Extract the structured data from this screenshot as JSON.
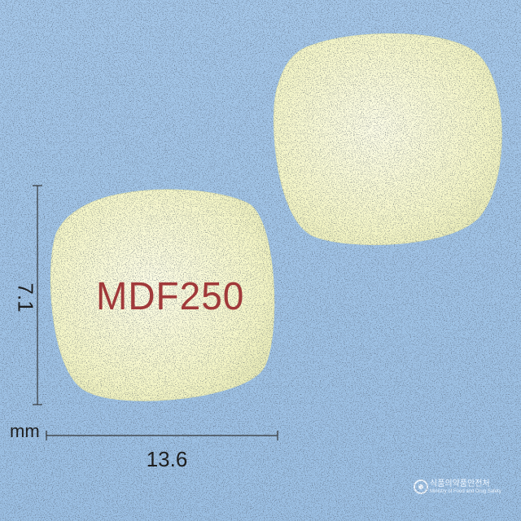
{
  "photo": {
    "background_color": "#9fc3e6",
    "tablet_color": "#f6f7cc",
    "imprint_color": "#9b2a2e",
    "front_tablet": {
      "imprint": "MDF250"
    },
    "back_tablet": {
      "imprint": ""
    }
  },
  "dimensions": {
    "width_value": "13.6",
    "height_value": "7.1",
    "unit": "mm"
  },
  "watermark": {
    "line1": "식품의약품안전처",
    "line2": "Ministry of Food and Drug Safety"
  }
}
